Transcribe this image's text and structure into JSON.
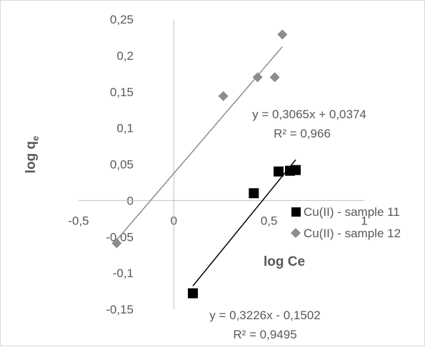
{
  "chart_data": {
    "type": "scatter",
    "xlabel": "log Ce",
    "ylabel_main": "log q",
    "ylabel_sub": "e",
    "xlim": [
      -0.5,
      1
    ],
    "ylim": [
      -0.15,
      0.25
    ],
    "x_ticks": [
      {
        "v": -0.5,
        "label": "-0,5"
      },
      {
        "v": 0,
        "label": "0"
      },
      {
        "v": 0.5,
        "label": "0,5"
      },
      {
        "v": 1,
        "label": "1"
      }
    ],
    "y_ticks": [
      {
        "v": 0.25,
        "label": "0,25"
      },
      {
        "v": 0.2,
        "label": "0,2"
      },
      {
        "v": 0.15,
        "label": "0,15"
      },
      {
        "v": 0.1,
        "label": "0,1"
      },
      {
        "v": 0.05,
        "label": "0,05"
      },
      {
        "v": 0,
        "label": "0"
      },
      {
        "v": -0.05,
        "label": "-0,05"
      },
      {
        "v": -0.1,
        "label": "-0,1"
      },
      {
        "v": -0.15,
        "label": "-0,15"
      }
    ],
    "series": [
      {
        "name": "Cu(II) - sample 11",
        "marker": "square",
        "color": "#000000",
        "trend_color": "#000000",
        "points": [
          {
            "x": 0.1,
            "y": -0.128
          },
          {
            "x": 0.42,
            "y": 0.01
          },
          {
            "x": 0.55,
            "y": 0.04
          },
          {
            "x": 0.61,
            "y": 0.041
          },
          {
            "x": 0.64,
            "y": 0.042
          }
        ],
        "trend": {
          "slope": 0.3226,
          "intercept": -0.1502,
          "x_range": [
            0.1,
            0.64
          ]
        },
        "equation": "y = 0,3226x - 0,1502",
        "r2": "R² = 0,9495"
      },
      {
        "name": "Cu(II) - sample 12",
        "marker": "diamond",
        "color": "#8c8c8c",
        "trend_color": "#8c8c8c",
        "points": [
          {
            "x": -0.3,
            "y": -0.059
          },
          {
            "x": 0.26,
            "y": 0.144
          },
          {
            "x": 0.44,
            "y": 0.17
          },
          {
            "x": 0.53,
            "y": 0.17
          },
          {
            "x": 0.57,
            "y": 0.229
          }
        ],
        "trend": {
          "slope": 0.3065,
          "intercept": 0.0374,
          "x_range": [
            -0.3,
            0.57
          ]
        },
        "equation": "y = 0,3065x + 0,0374",
        "r2": "R² = 0,966"
      }
    ],
    "legend_position": "right"
  }
}
